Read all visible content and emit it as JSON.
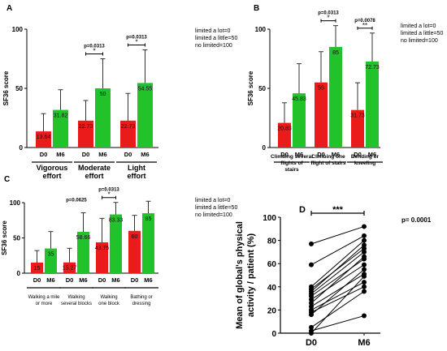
{
  "chart_data": [
    {
      "panel": "A",
      "type": "bar",
      "ylabel": "SF36 score",
      "ylim": [
        0,
        100
      ],
      "yticks": [
        0,
        50,
        100
      ],
      "timepoints": [
        "D0",
        "M6"
      ],
      "legend": [
        "limited a lot=0",
        "limited a little=50",
        "no limited=100"
      ],
      "groups": [
        {
          "label": [
            "Vigorous",
            "effort"
          ],
          "values": [
            13.64,
            31.82
          ],
          "errors": [
            15,
            17
          ],
          "label_text": [
            "13.64",
            "31.82"
          ],
          "sig": null
        },
        {
          "label": [
            "Moderate",
            "effort"
          ],
          "values": [
            22.73,
            50
          ],
          "errors": [
            17,
            25
          ],
          "label_text": [
            "22.73",
            "50"
          ],
          "sig": {
            "p": "p=0.0313",
            "stars": "*"
          }
        },
        {
          "label": [
            "Light",
            "effort"
          ],
          "values": [
            22.73,
            54.55
          ],
          "errors": [
            23,
            28
          ],
          "label_text": [
            "22.73",
            "54.55"
          ],
          "sig": {
            "p": "p=0.0313",
            "stars": "*"
          }
        }
      ]
    },
    {
      "panel": "B",
      "type": "bar",
      "ylabel": "SF36 score",
      "ylim": [
        0,
        100
      ],
      "yticks": [
        0,
        50,
        100
      ],
      "timepoints": [
        "D0",
        "M6"
      ],
      "legend": [
        "limited a lot=0",
        "limited a little=50",
        "no limited=100"
      ],
      "groups": [
        {
          "label": [
            "Climbing several",
            "flights of",
            "stairs"
          ],
          "values": [
            20.83,
            45.83
          ],
          "errors": [
            17,
            25
          ],
          "label_text": [
            "20.83",
            "45.83"
          ],
          "sig": null
        },
        {
          "label": [
            "Climbing one",
            "flight of stairs"
          ],
          "values": [
            55,
            85
          ],
          "errors": [
            26,
            18
          ],
          "label_text": [
            "55",
            "85"
          ],
          "sig": {
            "p": "p=0.0313",
            "stars": "*"
          }
        },
        {
          "label": [
            "Bending or",
            "kneeling"
          ],
          "values": [
            31.73,
            72.73
          ],
          "errors": [
            23,
            24
          ],
          "label_text": [
            "31.73",
            "72.73"
          ],
          "sig": {
            "p": "p=0.0078",
            "stars": "**"
          }
        }
      ]
    },
    {
      "panel": "C",
      "type": "bar",
      "ylabel": "SF36 score",
      "ylim": [
        0,
        100
      ],
      "yticks": [
        0,
        50,
        100
      ],
      "timepoints": [
        "D0",
        "M6"
      ],
      "legend": [
        "limited a lot=0",
        "limited a little=50",
        "no limited=100"
      ],
      "groups": [
        {
          "label": [
            "Walking a mile",
            "or more"
          ],
          "values": [
            15,
            35
          ],
          "errors": [
            17,
            24
          ],
          "label_text": [
            "15",
            "35"
          ],
          "sig": null
        },
        {
          "label": [
            "Walking",
            "several blocks"
          ],
          "values": [
            15.27,
            58.66
          ],
          "errors": [
            20,
            27
          ],
          "label_text": [
            "15.27",
            "58.66"
          ],
          "sig": {
            "p": "p=0.0625",
            "stars": ""
          }
        },
        {
          "label": [
            "Walking",
            "one block"
          ],
          "values": [
            43.75,
            83.33
          ],
          "errors": [
            34,
            17
          ],
          "label_text": [
            "43.75",
            "83.33"
          ],
          "sig": {
            "p": "p=0.0313",
            "stars": "*"
          }
        },
        {
          "label": [
            "Bathing or",
            "dressing"
          ],
          "values": [
            60,
            85
          ],
          "errors": [
            22,
            17
          ],
          "label_text": [
            "60",
            "85"
          ],
          "sig": null
        }
      ]
    },
    {
      "panel": "D",
      "type": "scatter",
      "ylabel": [
        "Mean of global's physical",
        "activity / patient (%)"
      ],
      "ylim": [
        0,
        100
      ],
      "yticks": [
        0,
        20,
        40,
        60,
        80,
        100
      ],
      "categories": [
        "D0",
        "M6"
      ],
      "p_value": "p= 0.0001",
      "stars": "***",
      "pairs": [
        [
          77,
          92
        ],
        [
          59,
          84
        ],
        [
          40,
          80
        ],
        [
          38,
          73
        ],
        [
          36,
          76
        ],
        [
          34,
          70
        ],
        [
          32,
          64
        ],
        [
          29,
          59
        ],
        [
          26,
          66
        ],
        [
          23,
          51
        ],
        [
          20,
          44
        ],
        [
          18,
          40
        ],
        [
          16,
          55
        ],
        [
          5,
          36
        ],
        [
          2,
          15
        ],
        [
          0,
          49
        ]
      ]
    }
  ]
}
